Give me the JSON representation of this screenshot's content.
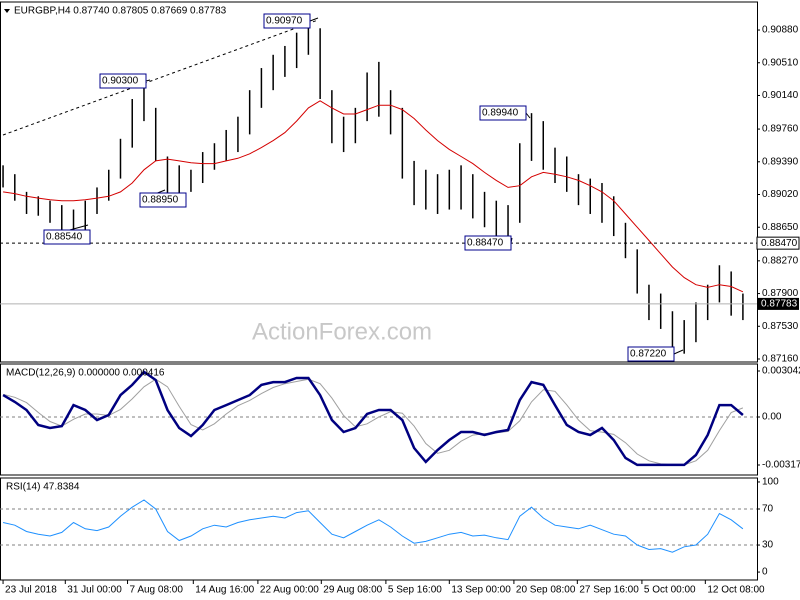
{
  "chart_data": [
    {
      "type": "ohlc",
      "title": "EURGBP,H4  0.87740 0.87805 0.87669 0.87783",
      "watermark": "ActionForex.com",
      "color": "#000000",
      "xlim": [
        -0.26,
        64.2
      ],
      "ylim": [
        0.87126,
        0.91197
      ],
      "yticks": [
        {
          "value": 0.9088,
          "label": "0.90880"
        },
        {
          "value": 0.9051,
          "label": "0.90510"
        },
        {
          "value": 0.9014,
          "label": "0.90140"
        },
        {
          "value": 0.8976,
          "label": "0.89760"
        },
        {
          "value": 0.8939,
          "label": "0.89390"
        },
        {
          "value": 0.8902,
          "label": "0.89020"
        },
        {
          "value": 0.8865,
          "label": "0.88650"
        },
        {
          "value": 0.8827,
          "label": "0.88270"
        },
        {
          "value": 0.879,
          "label": "0.87900"
        },
        {
          "value": 0.8753,
          "label": "0.87530"
        },
        {
          "value": 0.8716,
          "label": "0.87160"
        }
      ],
      "high": [
        0.8935,
        0.8925,
        0.8905,
        0.89,
        0.8895,
        0.889,
        0.8885,
        0.8895,
        0.891,
        0.893,
        0.8965,
        0.901,
        0.903,
        0.9,
        0.8945,
        0.8935,
        0.893,
        0.895,
        0.896,
        0.8975,
        0.899,
        0.902,
        0.9045,
        0.906,
        0.907,
        0.9085,
        0.9097,
        0.909,
        0.902,
        0.899,
        0.9,
        0.904,
        0.9052,
        0.902,
        0.9,
        0.894,
        0.893,
        0.8925,
        0.893,
        0.8935,
        0.8925,
        0.8905,
        0.8895,
        0.889,
        0.896,
        0.8994,
        0.8985,
        0.8955,
        0.8945,
        0.8925,
        0.892,
        0.8915,
        0.89,
        0.887,
        0.884,
        0.88,
        0.879,
        0.877,
        0.876,
        0.878,
        0.88,
        0.8822,
        0.8815,
        0.879
      ],
      "low": [
        0.891,
        0.8895,
        0.888,
        0.8878,
        0.887,
        0.886,
        0.8862,
        0.8854,
        0.888,
        0.8895,
        0.892,
        0.8955,
        0.8985,
        0.894,
        0.8895,
        0.89,
        0.8905,
        0.8915,
        0.893,
        0.894,
        0.895,
        0.897,
        0.9,
        0.902,
        0.9035,
        0.9045,
        0.906,
        0.901,
        0.896,
        0.895,
        0.896,
        0.8985,
        0.899,
        0.897,
        0.892,
        0.889,
        0.8885,
        0.888,
        0.8885,
        0.8885,
        0.8875,
        0.8865,
        0.8855,
        0.8847,
        0.887,
        0.894,
        0.893,
        0.8915,
        0.8905,
        0.889,
        0.888,
        0.887,
        0.8855,
        0.883,
        0.879,
        0.876,
        0.875,
        0.873,
        0.8722,
        0.8735,
        0.876,
        0.878,
        0.8765,
        0.876
      ],
      "moving_average": {
        "color": "#d40000",
        "values": [
          0.8905,
          0.8903,
          0.89,
          0.8898,
          0.8896,
          0.8895,
          0.8895,
          0.8896,
          0.8898,
          0.89,
          0.8905,
          0.8915,
          0.893,
          0.894,
          0.8942,
          0.894,
          0.8938,
          0.8937,
          0.8937,
          0.894,
          0.8943,
          0.8948,
          0.8955,
          0.8963,
          0.8972,
          0.8985,
          0.9,
          0.9008,
          0.9,
          0.8993,
          0.8993,
          0.8998,
          0.9003,
          0.9003,
          0.8998,
          0.8988,
          0.8975,
          0.8963,
          0.8953,
          0.8945,
          0.8937,
          0.8927,
          0.8918,
          0.891,
          0.8912,
          0.8922,
          0.8927,
          0.8925,
          0.8922,
          0.8918,
          0.8912,
          0.8905,
          0.8895,
          0.888,
          0.8865,
          0.885,
          0.8835,
          0.882,
          0.8808,
          0.88,
          0.8797,
          0.88,
          0.8798,
          0.8792
        ]
      },
      "annotations": [
        "0.90970",
        "0.90300",
        "0.88950",
        "0.88540",
        "0.89940",
        "0.88470",
        "0.87220"
      ],
      "levels": [
        {
          "value": 0.8847,
          "label": "0.88470"
        }
      ],
      "last_price": {
        "value": 0.87783,
        "label": "0.87783"
      }
    },
    {
      "type": "macd",
      "title": "MACD(12,26,9) 0.000000 0.000416",
      "xlim": [
        -0.26,
        64.2
      ],
      "ylim": [
        -0.003836,
        0.003505
      ],
      "yticks": [
        0.003042,
        {
          "value": 0,
          "label": "0.00"
        },
        -0.003174
      ],
      "reference_lines": [
        0
      ],
      "macd": {
        "color": "#000080",
        "values": [
          0.00145,
          0.001,
          0.00046,
          -0.00053,
          -0.00073,
          -0.0006,
          0.00079,
          0.00046,
          -0.0002,
          0.00013,
          0.00145,
          0.00212,
          0.00298,
          0.00245,
          0.00046,
          -0.00073,
          -0.00126,
          -0.00053,
          0.00046,
          0.00079,
          0.00112,
          0.00145,
          0.00212,
          0.00231,
          0.00231,
          0.00258,
          0.00258,
          0.00145,
          -0.0002,
          -0.00099,
          -0.00073,
          0.0002,
          0.00046,
          0.00046,
          -0.0002,
          -0.00205,
          -0.00297,
          -0.00218,
          -0.00152,
          -0.00099,
          -0.00099,
          -0.00119,
          -0.00099,
          -0.00086,
          0.00112,
          0.00231,
          0.00212,
          0.00079,
          -0.00053,
          -0.00099,
          -0.00119,
          -0.00073,
          -0.00152,
          -0.00271,
          -0.00317,
          -0.00317,
          -0.00317,
          -0.00317,
          -0.00317,
          -0.00251,
          -0.00119,
          0.00079,
          0.00079,
          0.00013
        ]
      },
      "signal": {
        "color": "#a0a0a0",
        "values": [
          0.0015,
          0.0013,
          0.00095,
          0.0003,
          -0.0003,
          -0.0006,
          -0.00015,
          0.0002,
          0.0002,
          0.0001,
          0.0005,
          0.0012,
          0.002,
          0.0025,
          0.002,
          0.0007,
          -0.0005,
          -0.00085,
          -0.00045,
          0.0002,
          0.00075,
          0.0011,
          0.00155,
          0.00195,
          0.0022,
          0.00235,
          0.0025,
          0.0022,
          0.00125,
          0.0001,
          -0.00065,
          -0.00045,
          0.0,
          0.00035,
          0.00025,
          -0.0006,
          -0.00175,
          -0.0024,
          -0.0022,
          -0.0016,
          -0.0012,
          -0.0011,
          -0.00105,
          -0.00095,
          -0.00025,
          0.001,
          0.0018,
          0.0017,
          0.0008,
          -0.0002,
          -0.0009,
          -0.001,
          -0.00115,
          -0.0017,
          -0.00245,
          -0.0029,
          -0.0031,
          -0.00317,
          -0.00317,
          -0.0029,
          -0.0022,
          -0.0009,
          0.0003,
          0.0006
        ]
      }
    },
    {
      "type": "rsi",
      "title": "RSI(14) 47.8384",
      "xlim": [
        -0.26,
        64.2
      ],
      "ylim": [
        -8.8,
        104.4
      ],
      "yticks": [
        100,
        70,
        30,
        0
      ],
      "reference_lines": [
        70,
        30
      ],
      "color": "#1e90ff",
      "values": [
        55,
        52,
        45,
        42,
        40,
        44,
        55,
        48,
        46,
        50,
        62,
        72,
        80,
        70,
        45,
        35,
        40,
        48,
        52,
        50,
        55,
        58,
        60,
        62,
        60,
        66,
        68,
        55,
        42,
        38,
        45,
        52,
        58,
        50,
        40,
        32,
        34,
        38,
        42,
        44,
        40,
        41,
        38,
        36,
        62,
        72,
        60,
        52,
        50,
        48,
        52,
        47,
        42,
        40,
        30,
        25,
        26,
        22,
        28,
        30,
        42,
        65,
        58,
        48
      ],
      "xticks": [
        {
          "value": 0,
          "label": "23 Jul 2018"
        },
        {
          "value": 5.3,
          "label": "31 Jul 00:00"
        },
        {
          "value": 10.6,
          "label": "7 Aug 08:00"
        },
        {
          "value": 16.2,
          "label": "14 Aug 16:00"
        },
        {
          "value": 21.7,
          "label": "22 Aug 00:00"
        },
        {
          "value": 27.1,
          "label": "29 Aug 08:00"
        },
        {
          "value": 32.6,
          "label": "5 Sep 16:00"
        },
        {
          "value": 38.0,
          "label": "13 Sep 00:00"
        },
        {
          "value": 43.5,
          "label": "20 Sep 08:00"
        },
        {
          "value": 48.9,
          "label": "27 Sep 16:00"
        },
        {
          "value": 54.4,
          "label": "5 Oct 00:00"
        },
        {
          "value": 59.8,
          "label": "12 Oct 08:00"
        }
      ]
    }
  ]
}
